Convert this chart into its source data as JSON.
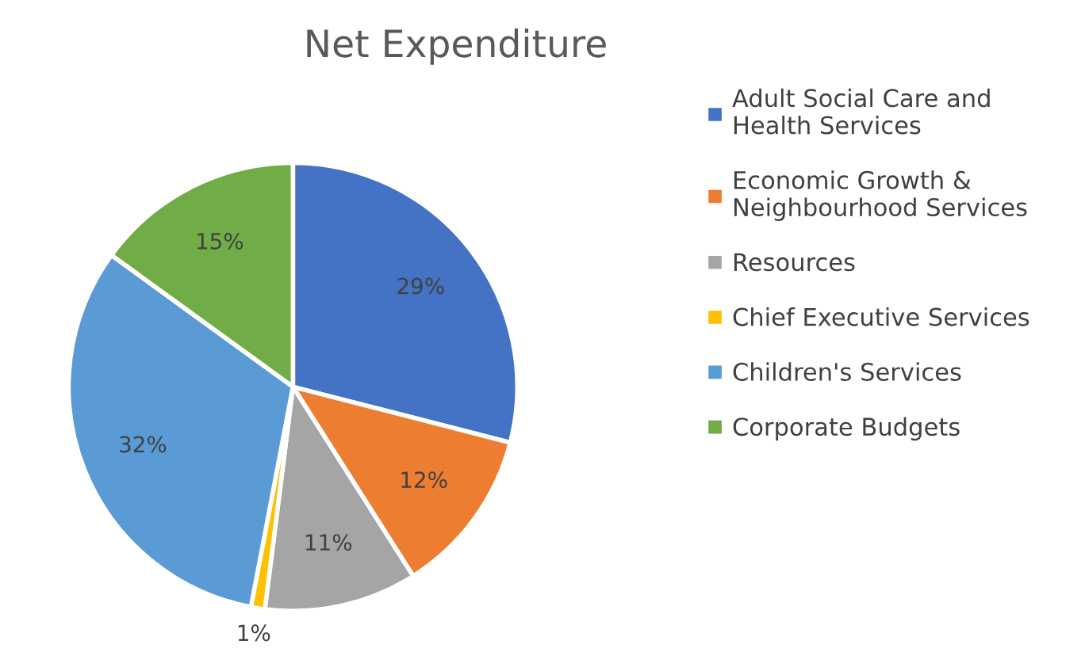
{
  "chart_data": {
    "type": "pie",
    "title": "Net Expenditure",
    "categories": [
      "Adult Social Care and\nHealth Services",
      "Economic Growth &\nNeighbourhood Services",
      "Resources",
      "Chief Executive Services",
      "Children's Services",
      "Corporate Budgets"
    ],
    "values": [
      29,
      12,
      11,
      1,
      32,
      15
    ],
    "colors": [
      "#4472c4",
      "#ed7d31",
      "#a5a5a5",
      "#ffc000",
      "#5b9bd5",
      "#70ad47"
    ],
    "value_labels": [
      "29%",
      "12%",
      "11%",
      "1%",
      "32%",
      "15%"
    ],
    "legend": "right"
  }
}
